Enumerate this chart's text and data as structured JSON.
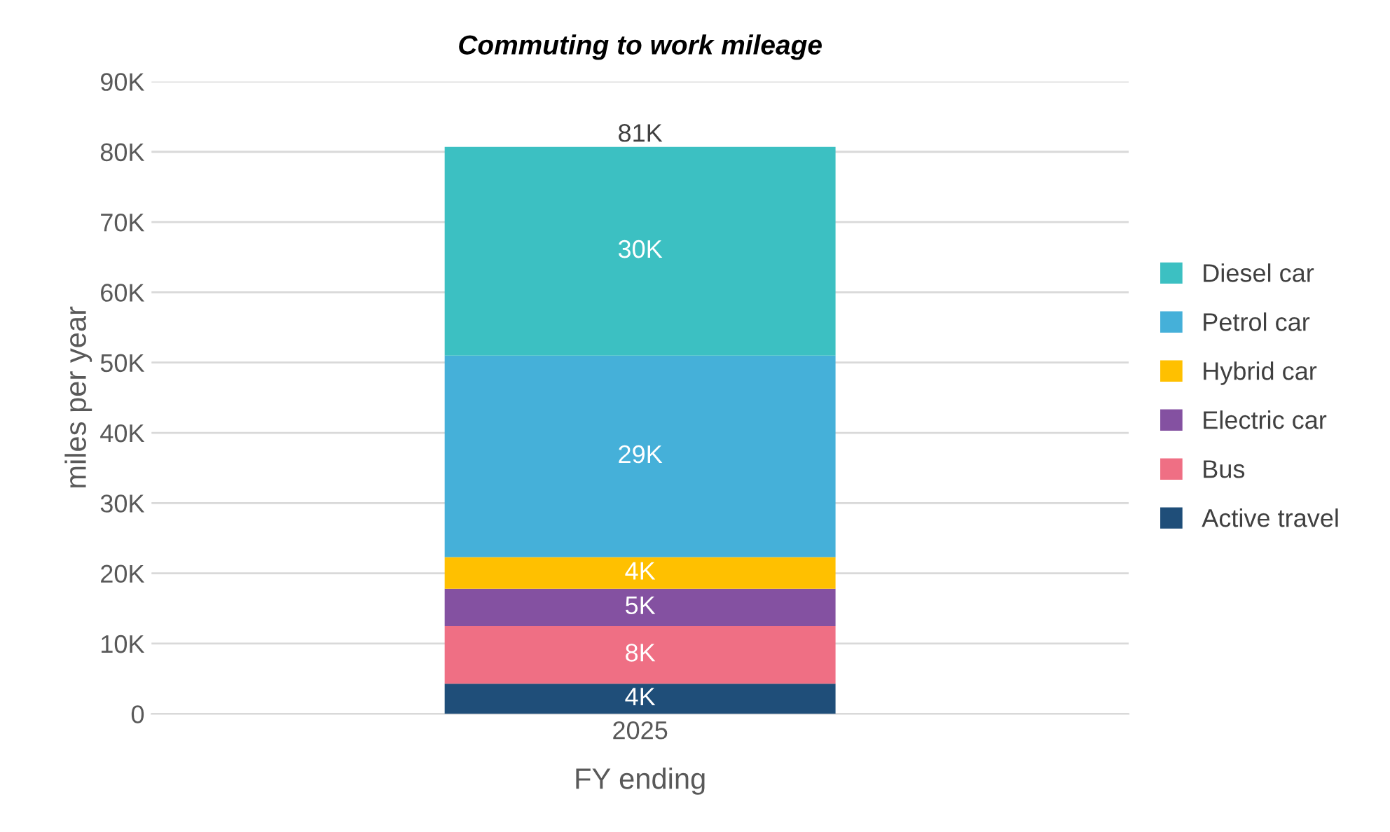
{
  "chart_data": {
    "type": "bar",
    "stacked": true,
    "title": "Commuting to work mileage",
    "xlabel": "FY ending",
    "ylabel": "miles per year",
    "categories": [
      "2025"
    ],
    "series": [
      {
        "name": "Active travel",
        "color": "#1f4e79",
        "values": [
          4300
        ],
        "value_labels": [
          "4K"
        ]
      },
      {
        "name": "Bus",
        "color": "#ef6f84",
        "values": [
          8200
        ],
        "value_labels": [
          "8K"
        ]
      },
      {
        "name": "Electric car",
        "color": "#8451a1",
        "values": [
          5300
        ],
        "value_labels": [
          "5K"
        ]
      },
      {
        "name": "Hybrid car",
        "color": "#ffc000",
        "values": [
          4500
        ],
        "value_labels": [
          "4K"
        ]
      },
      {
        "name": "Petrol car",
        "color": "#45b0d9",
        "values": [
          28700
        ],
        "value_labels": [
          "29K"
        ]
      },
      {
        "name": "Diesel car",
        "color": "#3cc0c2",
        "values": [
          29700
        ],
        "value_labels": [
          "30K"
        ]
      }
    ],
    "totals": [
      "81K"
    ],
    "ylim": [
      0,
      90000
    ],
    "yticks": [
      0,
      {
        "value": 10000,
        "label": "10K"
      },
      {
        "value": 20000,
        "label": "20K"
      },
      {
        "value": 30000,
        "label": "30K"
      },
      {
        "value": 40000,
        "label": "40K"
      },
      {
        "value": 50000,
        "label": "50K"
      },
      {
        "value": 60000,
        "label": "60K"
      },
      {
        "value": 70000,
        "label": "70K"
      },
      {
        "value": 80000,
        "label": "80K"
      },
      {
        "value": 90000,
        "label": "90K"
      }
    ],
    "grid": "y",
    "legend": "right"
  }
}
